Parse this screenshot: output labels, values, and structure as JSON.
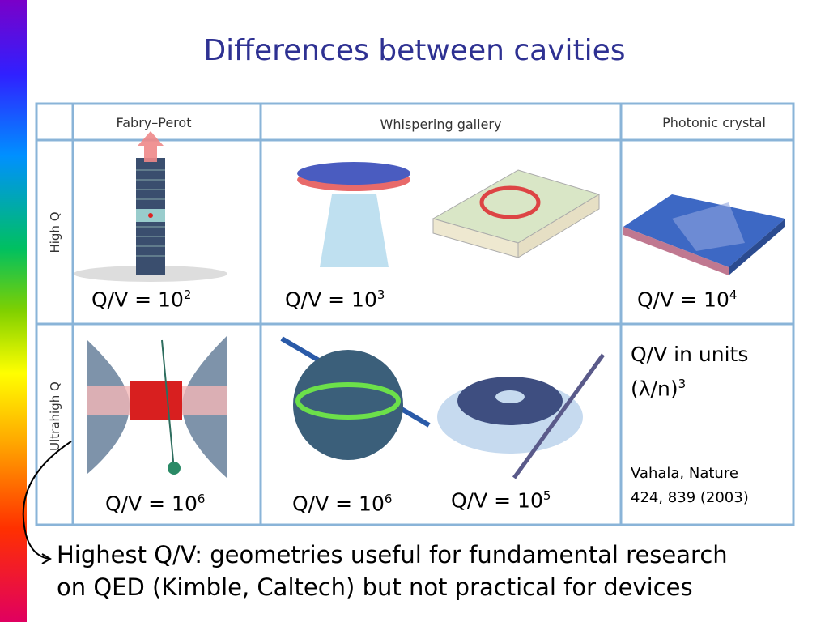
{
  "title": "Differences between cavities",
  "table": {
    "headers": [
      "Fabry–Perot",
      "Whispering gallery",
      "Photonic crystal"
    ],
    "row_labels": [
      "High Q",
      "Ultrahigh Q"
    ],
    "qv": [
      {
        "text": "Q/V = 10",
        "exp": "2"
      },
      {
        "text": "Q/V = 10",
        "exp": "3"
      },
      {
        "text": "Q/V = 10",
        "exp": "4"
      },
      {
        "text": "Q/V = 10",
        "exp": "6"
      },
      {
        "text": "Q/V = 10",
        "exp": "6"
      },
      {
        "text": "Q/V = 10",
        "exp": "5"
      }
    ],
    "units": {
      "line1": "Q/V in units",
      "line2": "(λ/n)",
      "exp": "3"
    },
    "citation": [
      "Vahala, Nature",
      "424, 839 (2003)"
    ]
  },
  "footer": [
    "Highest Q/V: geometries useful for fundamental research",
    "on QED (Kimble, Caltech) but not practical for devices"
  ]
}
